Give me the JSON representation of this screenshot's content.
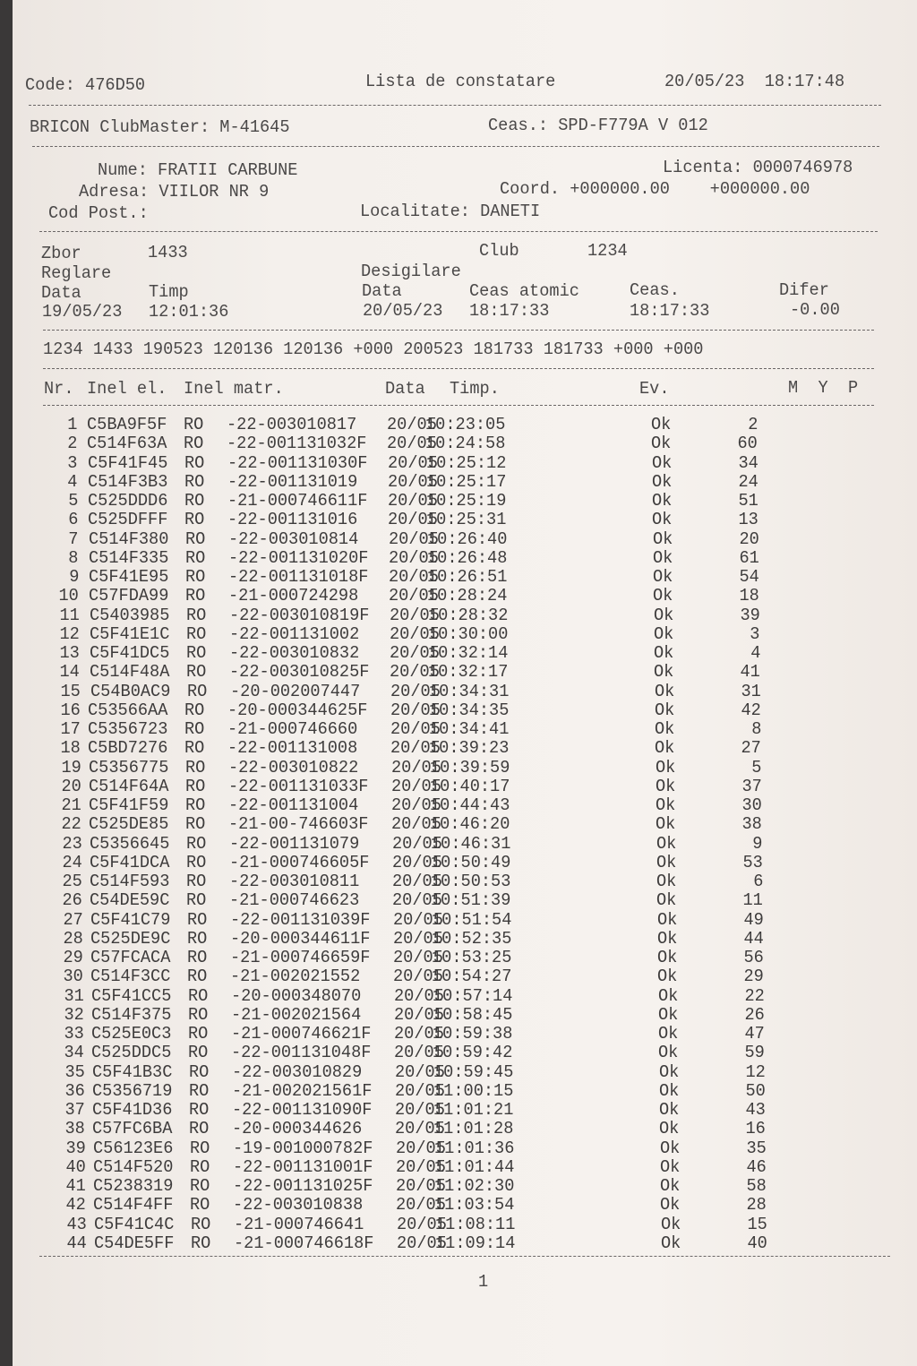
{
  "header": {
    "code": "Code: 476D50",
    "title": "Lista de constatare",
    "datetime": "20/05/23  18:17:48",
    "clubmaster": "BRICON ClubMaster: M-41645",
    "ceas": "Ceas.: SPD-F779A V 012"
  },
  "owner": {
    "nume": "Nume: FRATII CARBUNE",
    "licenta": "Licenta: 0000746978",
    "adresa": "Adresa: VIILOR NR 9",
    "coord": "Coord. +000000.00    +000000.00",
    "cod_post": "Cod Post.:",
    "localitate": "Localitate: DANETI"
  },
  "flight": {
    "zbor_label": "Zbor",
    "zbor": "1433",
    "club_label": "Club",
    "club": "1234",
    "reglare": "Reglare",
    "desigilare": "Desigilare",
    "data_label": "Data",
    "timp_label": "Timp",
    "data2_label": "Data",
    "ceas_atomic_label": "Ceas atomic",
    "ceas_label": "Ceas.",
    "difer_label": "Difer",
    "reglare_data": "19/05/23",
    "reglare_timp": "12:01:36",
    "desig_data": "20/05/23",
    "ceas_atomic": "18:17:33",
    "ceas": "18:17:33",
    "difer": "-0.00"
  },
  "summary_line": "1234 1433 190523 120136 120136 +000 200523 181733 181733 +000 +000",
  "table": {
    "headers": {
      "nr": "Nr.",
      "inel_el": "Inel el.",
      "inel_matr": "Inel matr.",
      "data": "Data",
      "timp": "Timp.",
      "ev": "Ev.",
      "myp": "M  Y  P"
    },
    "rows": [
      [
        "1",
        "C5BA9F5F",
        "RO",
        "-22-003010817",
        "20/05",
        "10:23:05",
        "Ok",
        "2"
      ],
      [
        "2",
        "C514F63A",
        "RO",
        "-22-001131032F",
        "20/05",
        "10:24:58",
        "Ok",
        "60"
      ],
      [
        "3",
        "C5F41F45",
        "RO",
        "-22-001131030F",
        "20/05",
        "10:25:12",
        "Ok",
        "34"
      ],
      [
        "4",
        "C514F3B3",
        "RO",
        "-22-001131019",
        "20/05",
        "10:25:17",
        "Ok",
        "24"
      ],
      [
        "5",
        "C525DDD6",
        "RO",
        "-21-000746611F",
        "20/05",
        "10:25:19",
        "Ok",
        "51"
      ],
      [
        "6",
        "C525DFFF",
        "RO",
        "-22-001131016",
        "20/05",
        "10:25:31",
        "Ok",
        "13"
      ],
      [
        "7",
        "C514F380",
        "RO",
        "-22-003010814",
        "20/05",
        "10:26:40",
        "Ok",
        "20"
      ],
      [
        "8",
        "C514F335",
        "RO",
        "-22-001131020F",
        "20/05",
        "10:26:48",
        "Ok",
        "61"
      ],
      [
        "9",
        "C5F41E95",
        "RO",
        "-22-001131018F",
        "20/05",
        "10:26:51",
        "Ok",
        "54"
      ],
      [
        "10",
        "C57FDA99",
        "RO",
        "-21-000724298",
        "20/05",
        "10:28:24",
        "Ok",
        "18"
      ],
      [
        "11",
        "C5403985",
        "RO",
        "-22-003010819F",
        "20/05",
        "10:28:32",
        "Ok",
        "39"
      ],
      [
        "12",
        "C5F41E1C",
        "RO",
        "-22-001131002",
        "20/05",
        "10:30:00",
        "Ok",
        "3"
      ],
      [
        "13",
        "C5F41DC5",
        "RO",
        "-22-003010832",
        "20/05",
        "10:32:14",
        "Ok",
        "4"
      ],
      [
        "14",
        "C514F48A",
        "RO",
        "-22-003010825F",
        "20/05",
        "10:32:17",
        "Ok",
        "41"
      ],
      [
        "15",
        "C54B0AC9",
        "RO",
        "-20-002007447",
        "20/05",
        "10:34:31",
        "Ok",
        "31"
      ],
      [
        "16",
        "C53566AA",
        "RO",
        "-20-000344625F",
        "20/05",
        "10:34:35",
        "Ok",
        "42"
      ],
      [
        "17",
        "C5356723",
        "RO",
        "-21-000746660",
        "20/05",
        "10:34:41",
        "Ok",
        "8"
      ],
      [
        "18",
        "C5BD7276",
        "RO",
        "-22-001131008",
        "20/05",
        "10:39:23",
        "Ok",
        "27"
      ],
      [
        "19",
        "C5356775",
        "RO",
        "-22-003010822",
        "20/05",
        "10:39:59",
        "Ok",
        "5"
      ],
      [
        "20",
        "C514F64A",
        "RO",
        "-22-001131033F",
        "20/05",
        "10:40:17",
        "Ok",
        "37"
      ],
      [
        "21",
        "C5F41F59",
        "RO",
        "-22-001131004",
        "20/05",
        "10:44:43",
        "Ok",
        "30"
      ],
      [
        "22",
        "C525DE85",
        "RO",
        "-21-00-746603F",
        "20/05",
        "10:46:20",
        "Ok",
        "38"
      ],
      [
        "23",
        "C5356645",
        "RO",
        "-22-001131079",
        "20/05",
        "10:46:31",
        "Ok",
        "9"
      ],
      [
        "24",
        "C5F41DCA",
        "RO",
        "-21-000746605F",
        "20/05",
        "10:50:49",
        "Ok",
        "53"
      ],
      [
        "25",
        "C514F593",
        "RO",
        "-22-003010811",
        "20/05",
        "10:50:53",
        "Ok",
        "6"
      ],
      [
        "26",
        "C54DE59C",
        "RO",
        "-21-000746623",
        "20/05",
        "10:51:39",
        "Ok",
        "11"
      ],
      [
        "27",
        "C5F41C79",
        "RO",
        "-22-001131039F",
        "20/05",
        "10:51:54",
        "Ok",
        "49"
      ],
      [
        "28",
        "C525DE9C",
        "RO",
        "-20-000344611F",
        "20/05",
        "10:52:35",
        "Ok",
        "44"
      ],
      [
        "29",
        "C57FCACA",
        "RO",
        "-21-000746659F",
        "20/05",
        "10:53:25",
        "Ok",
        "56"
      ],
      [
        "30",
        "C514F3CC",
        "RO",
        "-21-002021552",
        "20/05",
        "10:54:27",
        "Ok",
        "29"
      ],
      [
        "31",
        "C5F41CC5",
        "RO",
        "-20-000348070",
        "20/05",
        "10:57:14",
        "Ok",
        "22"
      ],
      [
        "32",
        "C514F375",
        "RO",
        "-21-002021564",
        "20/05",
        "10:58:45",
        "Ok",
        "26"
      ],
      [
        "33",
        "C525E0C3",
        "RO",
        "-21-000746621F",
        "20/05",
        "10:59:38",
        "Ok",
        "47"
      ],
      [
        "34",
        "C525DDC5",
        "RO",
        "-22-001131048F",
        "20/05",
        "10:59:42",
        "Ok",
        "59"
      ],
      [
        "35",
        "C5F41B3C",
        "RO",
        "-22-003010829",
        "20/05",
        "10:59:45",
        "Ok",
        "12"
      ],
      [
        "36",
        "C5356719",
        "RO",
        "-21-002021561F",
        "20/05",
        "11:00:15",
        "Ok",
        "50"
      ],
      [
        "37",
        "C5F41D36",
        "RO",
        "-22-001131090F",
        "20/05",
        "11:01:21",
        "Ok",
        "43"
      ],
      [
        "38",
        "C57FC6BA",
        "RO",
        "-20-000344626",
        "20/05",
        "11:01:28",
        "Ok",
        "16"
      ],
      [
        "39",
        "C56123E6",
        "RO",
        "-19-001000782F",
        "20/05",
        "11:01:36",
        "Ok",
        "35"
      ],
      [
        "40",
        "C514F520",
        "RO",
        "-22-001131001F",
        "20/05",
        "11:01:44",
        "Ok",
        "46"
      ],
      [
        "41",
        "C5238319",
        "RO",
        "-22-001131025F",
        "20/05",
        "11:02:30",
        "Ok",
        "58"
      ],
      [
        "42",
        "C514F4FF",
        "RO",
        "-22-003010838",
        "20/05",
        "11:03:54",
        "Ok",
        "28"
      ],
      [
        "43",
        "C5F41C4C",
        "RO",
        "-21-000746641",
        "20/05",
        "11:08:11",
        "Ok",
        "15"
      ],
      [
        "44",
        "C54DE5FF",
        "RO",
        "-21-000746618F",
        "20/05",
        "11:09:14",
        "Ok",
        "40"
      ]
    ]
  },
  "page_number": "1"
}
